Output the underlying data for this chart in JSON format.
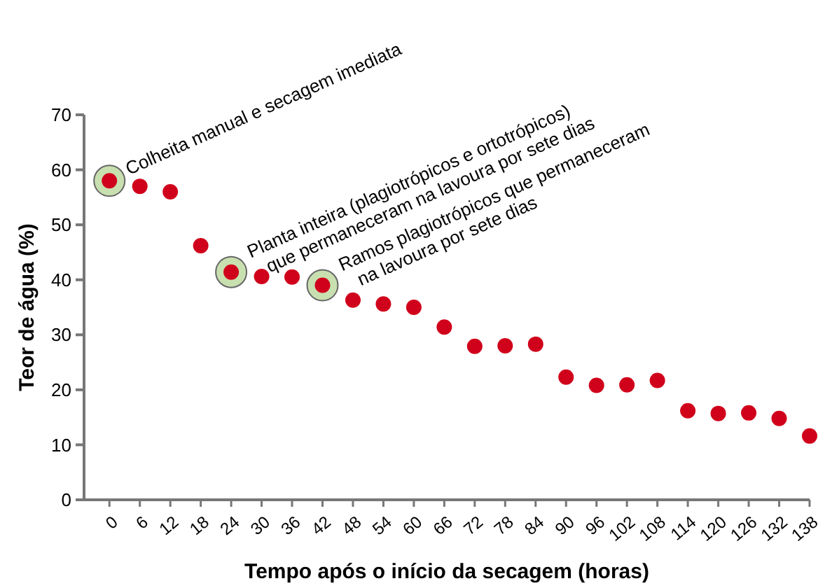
{
  "chart_data": {
    "type": "scatter",
    "xlabel": "Tempo após o início da secagem (horas)",
    "ylabel": "Teor de água (%)",
    "x": [
      0,
      6,
      12,
      18,
      24,
      30,
      36,
      42,
      48,
      54,
      60,
      66,
      72,
      78,
      84,
      90,
      96,
      102,
      108,
      114,
      120,
      126,
      132,
      138
    ],
    "series": [
      {
        "color": "#d0021b",
        "values": [
          58,
          57,
          56,
          46.2,
          41.4,
          40.6,
          40.5,
          39,
          36.3,
          35.6,
          35,
          31.4,
          27.9,
          28,
          28.3,
          22.3,
          20.8,
          20.9,
          21.7,
          16.2,
          15.7,
          15.8,
          14.8,
          11.6
        ]
      }
    ],
    "xlim": [
      -5,
      138
    ],
    "xticks": [
      0,
      6,
      12,
      18,
      24,
      30,
      36,
      42,
      48,
      54,
      60,
      66,
      72,
      78,
      84,
      90,
      96,
      102,
      108,
      114,
      120,
      126,
      132,
      138
    ],
    "ylim": [
      0,
      70
    ],
    "yticks": [
      0,
      10,
      20,
      30,
      40,
      50,
      60,
      70
    ],
    "grid": false,
    "marker": "circle",
    "annotations": [
      {
        "text": "Colheita manual e secagem imediata",
        "x": 0,
        "y": 58
      },
      {
        "text": "Planta inteira (plagiotrópicos e ortotrópicos)\nque permaneceram na lavoura por sete dias",
        "x": 24,
        "y": 41.4
      },
      {
        "text": "Ramos plagiotrópicos que permaneceram\nna lavoura por sete dias",
        "x": 42,
        "y": 39
      }
    ]
  }
}
